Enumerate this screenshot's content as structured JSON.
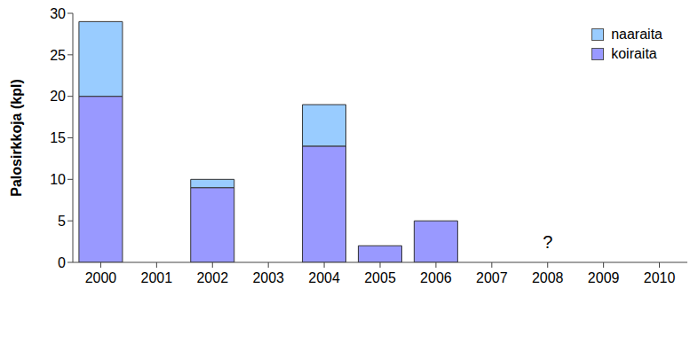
{
  "chart_data": {
    "type": "bar",
    "y_label": "Palosirkkoja (kpl)",
    "categories": [
      "2000",
      "2001",
      "2002",
      "2003",
      "2004",
      "2005",
      "2006",
      "2007",
      "2008",
      "2009",
      "2010"
    ],
    "series": [
      {
        "name": "koiraita",
        "color": "#9999ff",
        "values": [
          20,
          0,
          9,
          0,
          14,
          2,
          5,
          null,
          null,
          null,
          null
        ]
      },
      {
        "name": "naaraita",
        "color": "#99ccff",
        "values": [
          9,
          0,
          1,
          0,
          5,
          0,
          0,
          null,
          null,
          null,
          null
        ]
      }
    ],
    "ylim": [
      0,
      30
    ],
    "yticks": [
      0,
      5,
      10,
      15,
      20,
      25,
      30
    ],
    "stacked": true,
    "grid": false,
    "legend": "upper right",
    "annotations": [
      {
        "text": "?",
        "x": "2008",
        "y": 2.5
      }
    ]
  }
}
